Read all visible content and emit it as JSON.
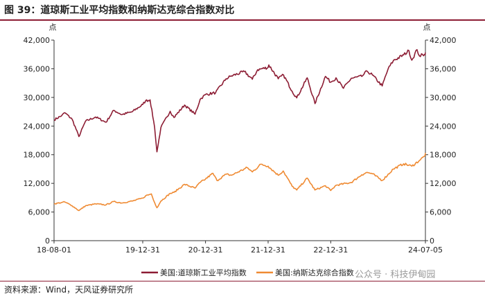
{
  "title": "图 39：道琼斯工业平均指数和纳斯达克综合指数对比",
  "source": "资料来源：Wind，天风证券研究所",
  "watermark": "公众号 · 科技伊甸园",
  "colors": {
    "dow": "#8c1c33",
    "nasdaq": "#ef8a32",
    "accent": "#8c1c33"
  },
  "chart_data": {
    "type": "line",
    "y_unit_left": "点",
    "y_unit_right": "点",
    "ylim": [
      0,
      42000
    ],
    "yticks": [
      "0",
      "6,000",
      "12,000",
      "18,000",
      "24,000",
      "30,000",
      "36,000",
      "42,000"
    ],
    "yticks_values": [
      0,
      6000,
      12000,
      18000,
      24000,
      30000,
      36000,
      42000
    ],
    "xticks": [
      "18-08-01",
      "19-12-31",
      "20-12-31",
      "21-12-31",
      "22-12-31",
      "24-07-05"
    ],
    "xlim": [
      "2018-08-01",
      "2024-07-05"
    ],
    "grid": false,
    "legend_position": "bottom",
    "series": [
      {
        "name": "美国:道琼斯工业平均指数",
        "x": [
          "2018-08-01",
          "2018-09-15",
          "2018-10-03",
          "2018-11-15",
          "2018-12-24",
          "2019-01-31",
          "2019-03-31",
          "2019-05-31",
          "2019-07-15",
          "2019-08-31",
          "2019-10-31",
          "2019-12-31",
          "2020-01-17",
          "2020-02-12",
          "2020-03-09",
          "2020-03-23",
          "2020-04-15",
          "2020-06-08",
          "2020-06-30",
          "2020-08-31",
          "2020-10-31",
          "2020-11-30",
          "2020-12-31",
          "2021-02-28",
          "2021-04-30",
          "2021-05-31",
          "2021-08-15",
          "2021-09-30",
          "2021-10-31",
          "2021-12-31",
          "2022-01-04",
          "2022-02-28",
          "2022-03-31",
          "2022-05-20",
          "2022-06-16",
          "2022-08-16",
          "2022-09-30",
          "2022-11-30",
          "2022-12-31",
          "2023-01-31",
          "2023-03-15",
          "2023-04-30",
          "2023-06-30",
          "2023-07-31",
          "2023-08-31",
          "2023-10-27",
          "2023-11-30",
          "2023-12-31",
          "2024-02-29",
          "2024-03-31",
          "2024-04-17",
          "2024-05-17",
          "2024-05-31",
          "2024-06-30",
          "2024-07-05"
        ],
        "values": [
          25300,
          26200,
          26800,
          25400,
          21800,
          25000,
          25900,
          24800,
          27300,
          26400,
          27000,
          28500,
          29300,
          29500,
          23800,
          18600,
          23700,
          27100,
          25800,
          28400,
          26500,
          29600,
          30600,
          31000,
          33900,
          34500,
          35400,
          33800,
          35800,
          36300,
          36800,
          33900,
          34700,
          31300,
          29900,
          34100,
          28700,
          34400,
          33200,
          34100,
          31900,
          34000,
          34400,
          35500,
          34700,
          32400,
          35900,
          37700,
          38900,
          39800,
          37800,
          40000,
          38700,
          39000,
          39400
        ],
        "color": "#8c1c33"
      },
      {
        "name": "美国:纳斯达克综合指数",
        "x": [
          "2018-08-01",
          "2018-09-15",
          "2018-10-03",
          "2018-11-15",
          "2018-12-24",
          "2019-01-31",
          "2019-03-31",
          "2019-05-31",
          "2019-07-15",
          "2019-08-31",
          "2019-10-31",
          "2019-12-31",
          "2020-01-17",
          "2020-02-19",
          "2020-03-09",
          "2020-03-23",
          "2020-04-15",
          "2020-06-08",
          "2020-06-30",
          "2020-08-31",
          "2020-10-31",
          "2020-11-30",
          "2020-12-31",
          "2021-02-12",
          "2021-03-08",
          "2021-04-30",
          "2021-05-31",
          "2021-08-31",
          "2021-09-30",
          "2021-11-19",
          "2021-12-31",
          "2022-02-28",
          "2022-03-29",
          "2022-05-20",
          "2022-06-16",
          "2022-08-16",
          "2022-09-30",
          "2022-11-30",
          "2022-12-31",
          "2023-01-31",
          "2023-04-30",
          "2023-06-30",
          "2023-07-31",
          "2023-08-31",
          "2023-10-27",
          "2023-12-31",
          "2024-02-29",
          "2024-04-17",
          "2024-05-31",
          "2024-06-30",
          "2024-07-05"
        ],
        "values": [
          7700,
          8000,
          8100,
          7300,
          6300,
          7300,
          7700,
          7500,
          8200,
          7900,
          8300,
          8900,
          9400,
          9800,
          8000,
          6900,
          8300,
          9900,
          10100,
          11800,
          11000,
          12200,
          12900,
          14100,
          12600,
          13900,
          13700,
          15300,
          14400,
          16000,
          15600,
          13700,
          14600,
          11400,
          10600,
          13100,
          10600,
          11500,
          10500,
          11600,
          12200,
          13800,
          14300,
          14000,
          12600,
          15000,
          16100,
          15600,
          16800,
          17700,
          18400
        ],
        "color": "#ef8a32"
      }
    ]
  }
}
